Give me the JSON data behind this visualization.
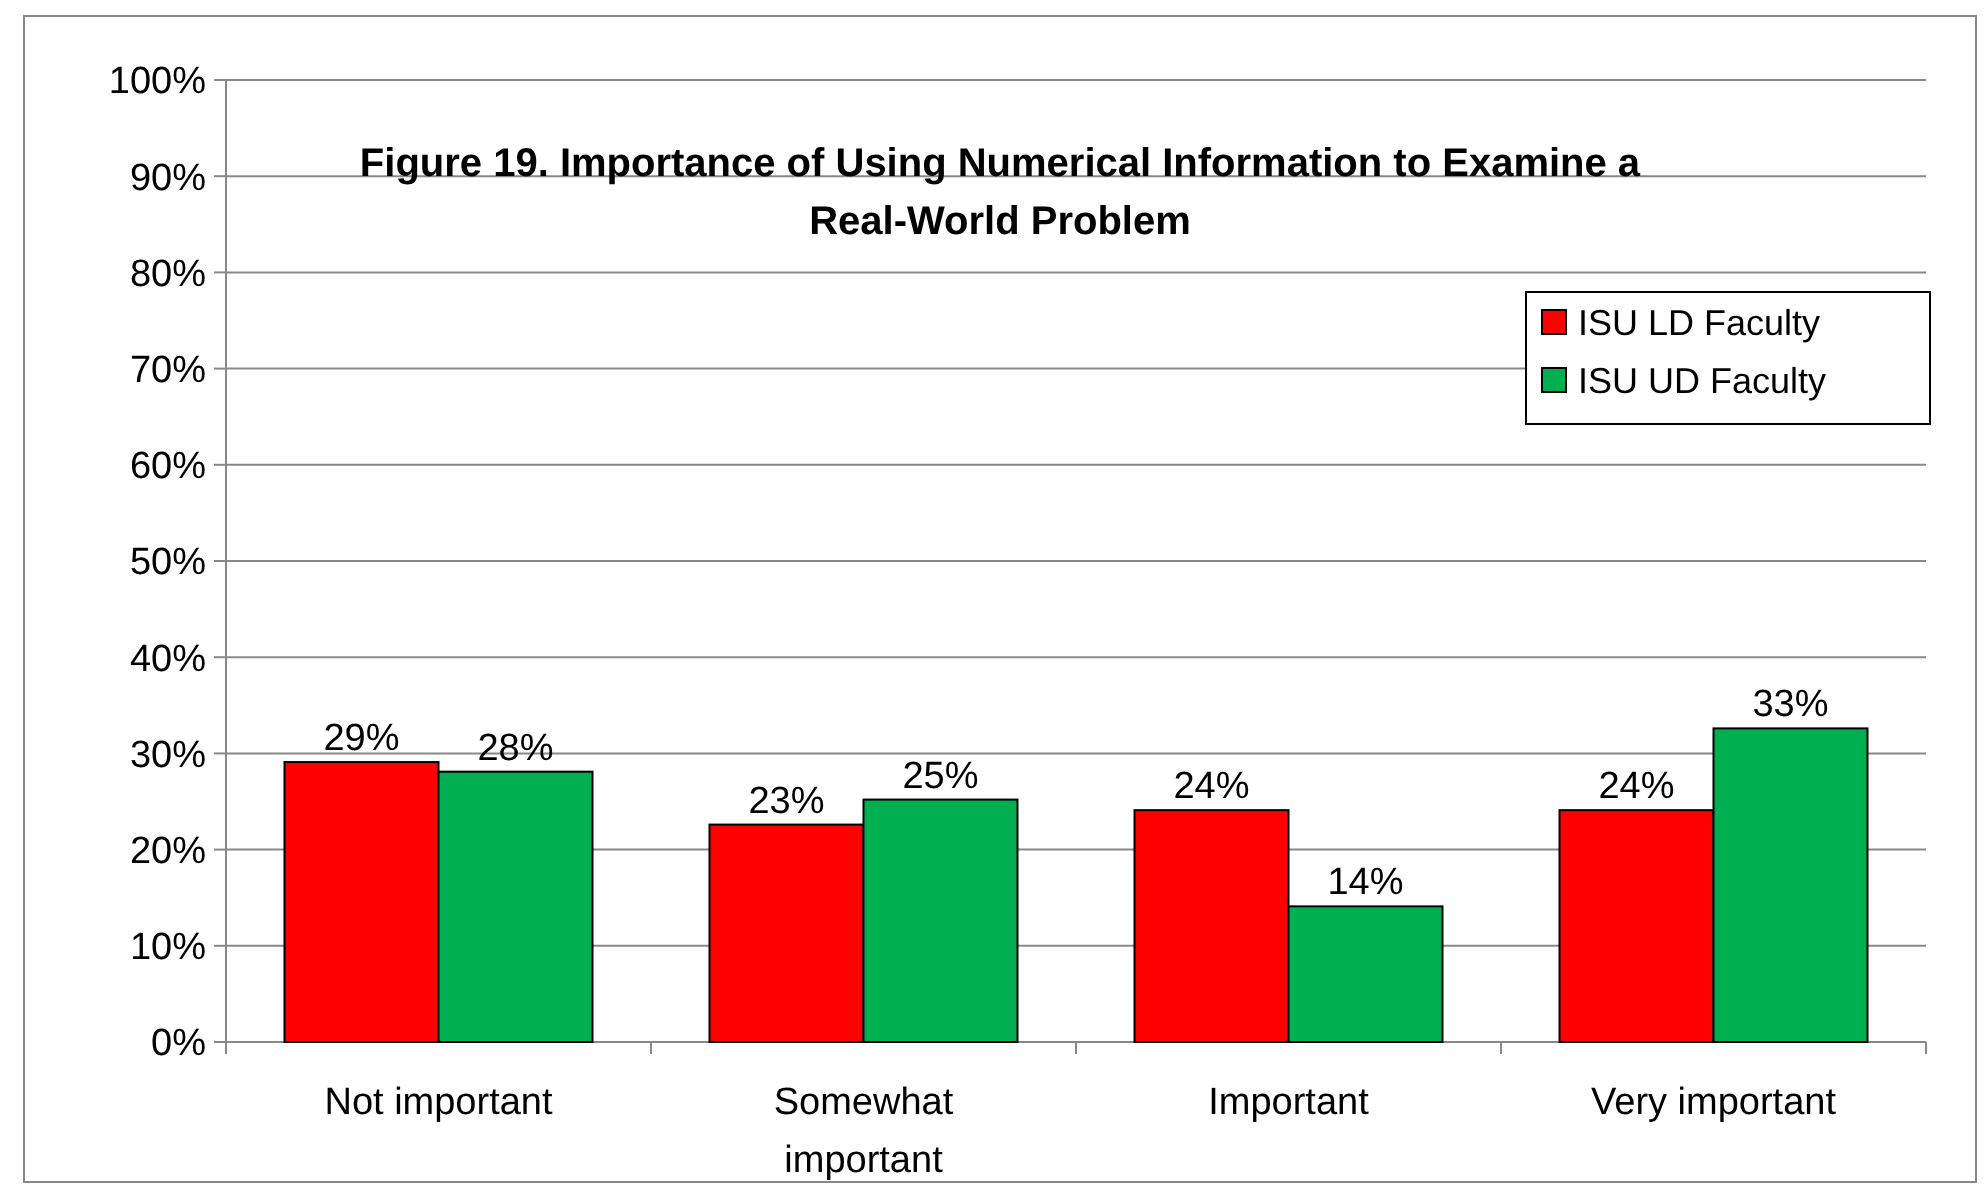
{
  "chart_data": {
    "type": "bar",
    "title": "Figure 19. Importance of Using Numerical Information to Examine a Real-World Problem",
    "categories": [
      "Not important",
      "Somewhat important",
      "Important",
      "Very important"
    ],
    "series": [
      {
        "name": "ISU LD Faculty",
        "color": "#ff0000",
        "values": [
          29.1,
          22.6,
          24.1,
          24.1
        ],
        "value_labels": [
          "29%",
          "23%",
          "24%",
          "24%"
        ]
      },
      {
        "name": "ISU UD Faculty",
        "color": "#00b050",
        "values": [
          28.1,
          25.2,
          14.1,
          32.6
        ],
        "value_labels": [
          "28%",
          "25%",
          "14%",
          "33%"
        ]
      }
    ],
    "ylim": [
      0,
      100
    ],
    "yticks": [
      {
        "value": 0,
        "label": "0%"
      },
      {
        "value": 10,
        "label": "10%"
      },
      {
        "value": 20,
        "label": "20%"
      },
      {
        "value": 30,
        "label": "30%"
      },
      {
        "value": 40,
        "label": "40%"
      },
      {
        "value": 50,
        "label": "50%"
      },
      {
        "value": 60,
        "label": "60%"
      },
      {
        "value": 70,
        "label": "70%"
      },
      {
        "value": 80,
        "label": "80%"
      },
      {
        "value": 90,
        "label": "90%"
      },
      {
        "value": 100,
        "label": "100%"
      }
    ],
    "grid": "y",
    "legend": "right"
  }
}
